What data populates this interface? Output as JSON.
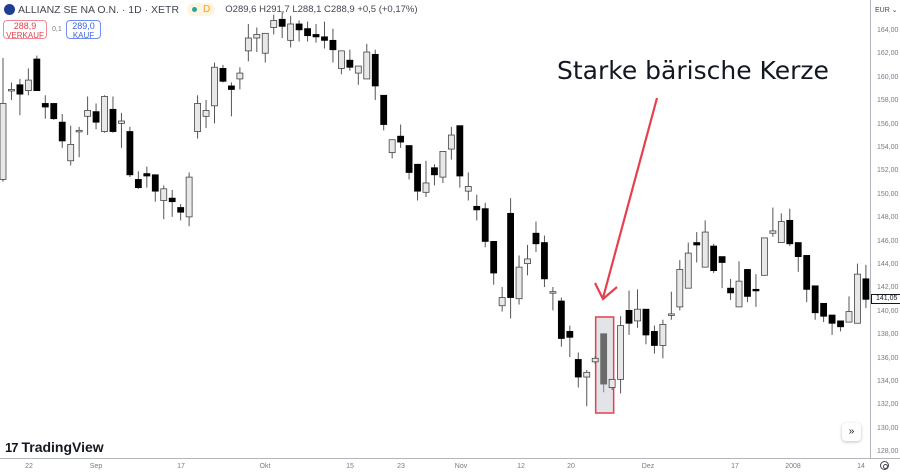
{
  "header": {
    "symbol_title": "ALLIANZ SE NA O.N. · 1D · XETR",
    "market_status_icon": "green-dot-icon",
    "delay_badge": "D",
    "ohlc": "O289,6  H291,7  L288,1  C288,9  +0,5 (+0,17%)"
  },
  "trade": {
    "sell_price": "288,9",
    "sell_label": "VERKAUF",
    "spread": "0,1",
    "buy_price": "289,0",
    "buy_label": "KAUF"
  },
  "annotation": {
    "text": "Starke bärische Kerze",
    "color": "#e5404e"
  },
  "price_axis": {
    "currency": "EUR",
    "labels": [
      "164,00",
      "162,00",
      "160,00",
      "158,00",
      "156,00",
      "154,00",
      "152,00",
      "150,00",
      "148,00",
      "146,00",
      "144,00",
      "142,00",
      "140,00",
      "138,00",
      "136,00",
      "134,00",
      "132,00",
      "130,00",
      "128,00"
    ],
    "last_price": "141,05"
  },
  "time_axis": {
    "labels": [
      "22",
      "Sep",
      "17",
      "Okt",
      "15",
      "23",
      "Nov",
      "12",
      "20",
      "Dez",
      "17",
      "2008",
      "14"
    ]
  },
  "branding": {
    "logo_text": "TradingView"
  },
  "colors": {
    "up_body": "#e8e8e8",
    "down_body": "#000000",
    "highlight_body": "#6b6b6b",
    "highlight_box": "#e5404e",
    "highlight_fill": "#e3e4e8"
  },
  "chart_data": {
    "type": "candlestick",
    "y_unit": "EUR",
    "ylim": [
      127.5,
      166.5
    ],
    "highlighted_index": 71,
    "candles": [
      [
        151.3,
        157.8,
        161.7,
        151.1
      ],
      [
        158.9,
        159.0,
        159.6,
        158.1
      ],
      [
        159.4,
        158.6,
        159.9,
        156.8
      ],
      [
        158.9,
        159.8,
        160.8,
        158.5
      ],
      [
        161.6,
        158.9,
        161.9,
        158.9
      ],
      [
        157.8,
        157.5,
        158.5,
        156.5
      ],
      [
        157.8,
        156.5,
        157.8,
        156.4
      ],
      [
        156.2,
        154.6,
        156.9,
        154.0
      ],
      [
        152.9,
        154.3,
        155.9,
        152.5
      ],
      [
        155.4,
        155.5,
        155.8,
        153.2
      ],
      [
        156.7,
        157.2,
        158.4,
        155.1
      ],
      [
        157.1,
        156.2,
        157.8,
        155.6
      ],
      [
        155.4,
        158.4,
        158.5,
        155.3
      ],
      [
        157.3,
        155.4,
        158.4,
        155.3
      ],
      [
        156.1,
        156.3,
        157.0,
        154.0
      ],
      [
        155.4,
        151.7,
        155.8,
        151.5
      ],
      [
        151.3,
        150.6,
        152.0,
        150.5
      ],
      [
        151.8,
        151.6,
        152.4,
        150.6
      ],
      [
        151.7,
        150.3,
        151.7,
        149.4
      ],
      [
        149.5,
        150.5,
        150.8,
        147.9
      ],
      [
        149.7,
        149.4,
        150.4,
        148.1
      ],
      [
        148.9,
        148.5,
        149.2,
        147.8
      ],
      [
        148.1,
        151.5,
        151.9,
        147.3
      ],
      [
        155.4,
        157.8,
        158.5,
        154.8
      ],
      [
        156.7,
        157.2,
        158.1,
        155.7
      ],
      [
        157.6,
        160.9,
        161.3,
        156.1
      ],
      [
        160.8,
        159.7,
        161.1,
        159.6
      ],
      [
        159.3,
        159.0,
        159.6,
        156.7
      ],
      [
        159.9,
        160.4,
        160.9,
        159.0
      ],
      [
        162.3,
        163.4,
        164.6,
        161.4
      ],
      [
        163.4,
        163.7,
        164.3,
        162.2
      ],
      [
        162.1,
        163.8,
        163.8,
        161.3
      ],
      [
        164.3,
        164.9,
        165.4,
        163.7
      ],
      [
        165.0,
        164.4,
        165.6,
        163.4
      ],
      [
        163.2,
        164.6,
        165.3,
        162.6
      ],
      [
        164.6,
        164.1,
        164.9,
        163.1
      ],
      [
        164.2,
        163.6,
        164.8,
        163.1
      ],
      [
        163.7,
        163.5,
        164.6,
        163.0
      ],
      [
        163.5,
        163.2,
        164.8,
        162.5
      ],
      [
        163.2,
        162.4,
        164.2,
        161.3
      ],
      [
        160.8,
        162.3,
        162.3,
        160.3
      ],
      [
        161.5,
        160.9,
        162.4,
        160.6
      ],
      [
        160.4,
        161.0,
        161.0,
        159.4
      ],
      [
        159.9,
        162.2,
        162.9,
        159.9
      ],
      [
        162.0,
        159.3,
        162.4,
        158.1
      ],
      [
        158.5,
        156.0,
        158.5,
        155.5
      ],
      [
        153.6,
        154.7,
        154.7,
        153.1
      ],
      [
        155.0,
        154.5,
        156.0,
        154.0
      ],
      [
        154.2,
        151.9,
        154.2,
        151.3
      ],
      [
        152.6,
        150.3,
        152.6,
        149.5
      ],
      [
        150.2,
        151.0,
        152.9,
        149.8
      ],
      [
        152.3,
        151.7,
        152.6,
        150.8
      ],
      [
        151.5,
        153.7,
        153.7,
        151.0
      ],
      [
        153.9,
        155.1,
        155.8,
        153.0
      ],
      [
        155.9,
        151.6,
        155.9,
        150.6
      ],
      [
        150.3,
        150.7,
        151.9,
        149.5
      ],
      [
        149.0,
        148.7,
        150.0,
        147.8
      ],
      [
        148.8,
        146.0,
        149.3,
        145.5
      ],
      [
        146.0,
        143.3,
        146.0,
        142.3
      ],
      [
        140.5,
        141.2,
        142.1,
        140.0
      ],
      [
        148.4,
        141.2,
        149.7,
        139.4
      ],
      [
        141.1,
        143.8,
        144.8,
        140.6
      ],
      [
        144.1,
        144.5,
        145.7,
        143.1
      ],
      [
        146.7,
        145.8,
        147.7,
        145.1
      ],
      [
        145.9,
        142.8,
        146.5,
        142.1
      ],
      [
        141.6,
        141.7,
        142.1,
        140.1
      ],
      [
        140.9,
        137.7,
        141.2,
        137.0
      ],
      [
        138.3,
        137.8,
        138.8,
        136.1
      ],
      [
        135.9,
        134.4,
        136.5,
        133.5
      ],
      [
        134.4,
        134.8,
        135.0,
        131.9
      ],
      [
        135.7,
        136.0,
        136.2,
        135.5
      ],
      [
        138.1,
        133.8,
        138.1,
        133.1
      ],
      [
        133.5,
        134.2,
        134.2,
        133.3
      ],
      [
        134.2,
        138.8,
        139.6,
        133.0
      ],
      [
        140.1,
        139.0,
        141.8,
        138.0
      ],
      [
        139.2,
        140.2,
        141.9,
        138.6
      ],
      [
        140.2,
        138.0,
        140.2,
        137.2
      ],
      [
        138.3,
        137.1,
        138.8,
        136.4
      ],
      [
        137.1,
        138.9,
        139.3,
        136.0
      ],
      [
        139.8,
        139.8,
        141.7,
        139.3
      ],
      [
        140.4,
        143.6,
        144.4,
        140.1
      ],
      [
        142.0,
        145.0,
        145.9,
        142.0
      ],
      [
        145.9,
        145.7,
        146.8,
        144.2
      ],
      [
        143.8,
        146.8,
        147.8,
        143.8
      ],
      [
        145.6,
        143.5,
        145.8,
        143.3
      ],
      [
        144.7,
        144.2,
        144.7,
        142.0
      ],
      [
        142.0,
        141.6,
        142.8,
        141.0
      ],
      [
        140.4,
        142.6,
        144.3,
        140.4
      ],
      [
        143.6,
        141.3,
        143.6,
        140.8
      ],
      [
        141.9,
        141.8,
        143.2,
        140.4
      ],
      [
        143.1,
        146.3,
        146.3,
        143.1
      ],
      [
        146.7,
        146.9,
        148.9,
        146.4
      ],
      [
        145.9,
        147.7,
        148.4,
        145.9
      ],
      [
        147.8,
        145.8,
        148.8,
        145.6
      ],
      [
        145.9,
        144.7,
        145.9,
        143.4
      ],
      [
        144.8,
        141.9,
        144.8,
        140.8
      ],
      [
        142.2,
        139.9,
        142.2,
        139.3
      ],
      [
        140.7,
        139.6,
        140.7,
        139.1
      ],
      [
        139.7,
        139.0,
        139.7,
        138.0
      ],
      [
        139.2,
        138.7,
        139.2,
        138.3
      ],
      [
        139.1,
        140.0,
        141.3,
        139.1
      ],
      [
        139.0,
        143.2,
        144.1,
        139.0
      ],
      [
        142.8,
        141.05,
        144.0,
        140.3
      ]
    ],
    "candle_fields": [
      "open",
      "close",
      "high",
      "low"
    ]
  }
}
